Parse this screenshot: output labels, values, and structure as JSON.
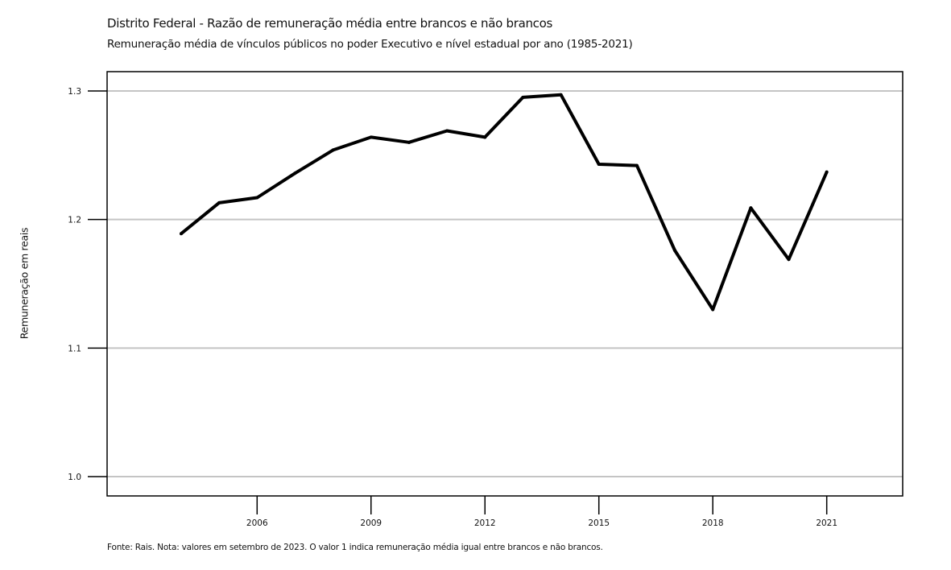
{
  "header": {
    "title": "Distrito Federal - Razão de remuneração média entre brancos e não brancos",
    "subtitle": "Remuneração média de vínculos públicos no poder Executivo e nível estadual por ano (1985-2021)"
  },
  "footer": {
    "note": "Fonte: Rais. Nota: valores em setembro de 2023. O valor 1 indica remuneração média igual entre brancos e não brancos."
  },
  "chart_data": {
    "type": "line",
    "title": "Distrito Federal - Razão de remuneração média entre brancos e não brancos",
    "subtitle": "Remuneração média de vínculos públicos no poder Executivo e nível estadual por ano (1985-2021)",
    "xlabel": "",
    "ylabel": "Remuneração em reais",
    "x": [
      2004,
      2005,
      2006,
      2007,
      2008,
      2009,
      2010,
      2011,
      2012,
      2013,
      2014,
      2015,
      2016,
      2017,
      2018,
      2019,
      2020,
      2021
    ],
    "series": [
      {
        "values": [
          1.189,
          1.213,
          1.217,
          1.236,
          1.254,
          1.264,
          1.26,
          1.269,
          1.264,
          1.295,
          1.297,
          1.243,
          1.242,
          1.176,
          1.13,
          1.209,
          1.169,
          1.237
        ],
        "color": "#000000"
      }
    ],
    "xticks": [
      "2006",
      "2009",
      "2012",
      "2015",
      "2018",
      "2021"
    ],
    "yticks": [
      "1.0",
      "1.1",
      "1.2",
      "1.3"
    ],
    "xlim": [
      2002.05,
      2023.0
    ],
    "ylim": [
      0.985,
      1.315
    ],
    "grid": "horizontal"
  }
}
